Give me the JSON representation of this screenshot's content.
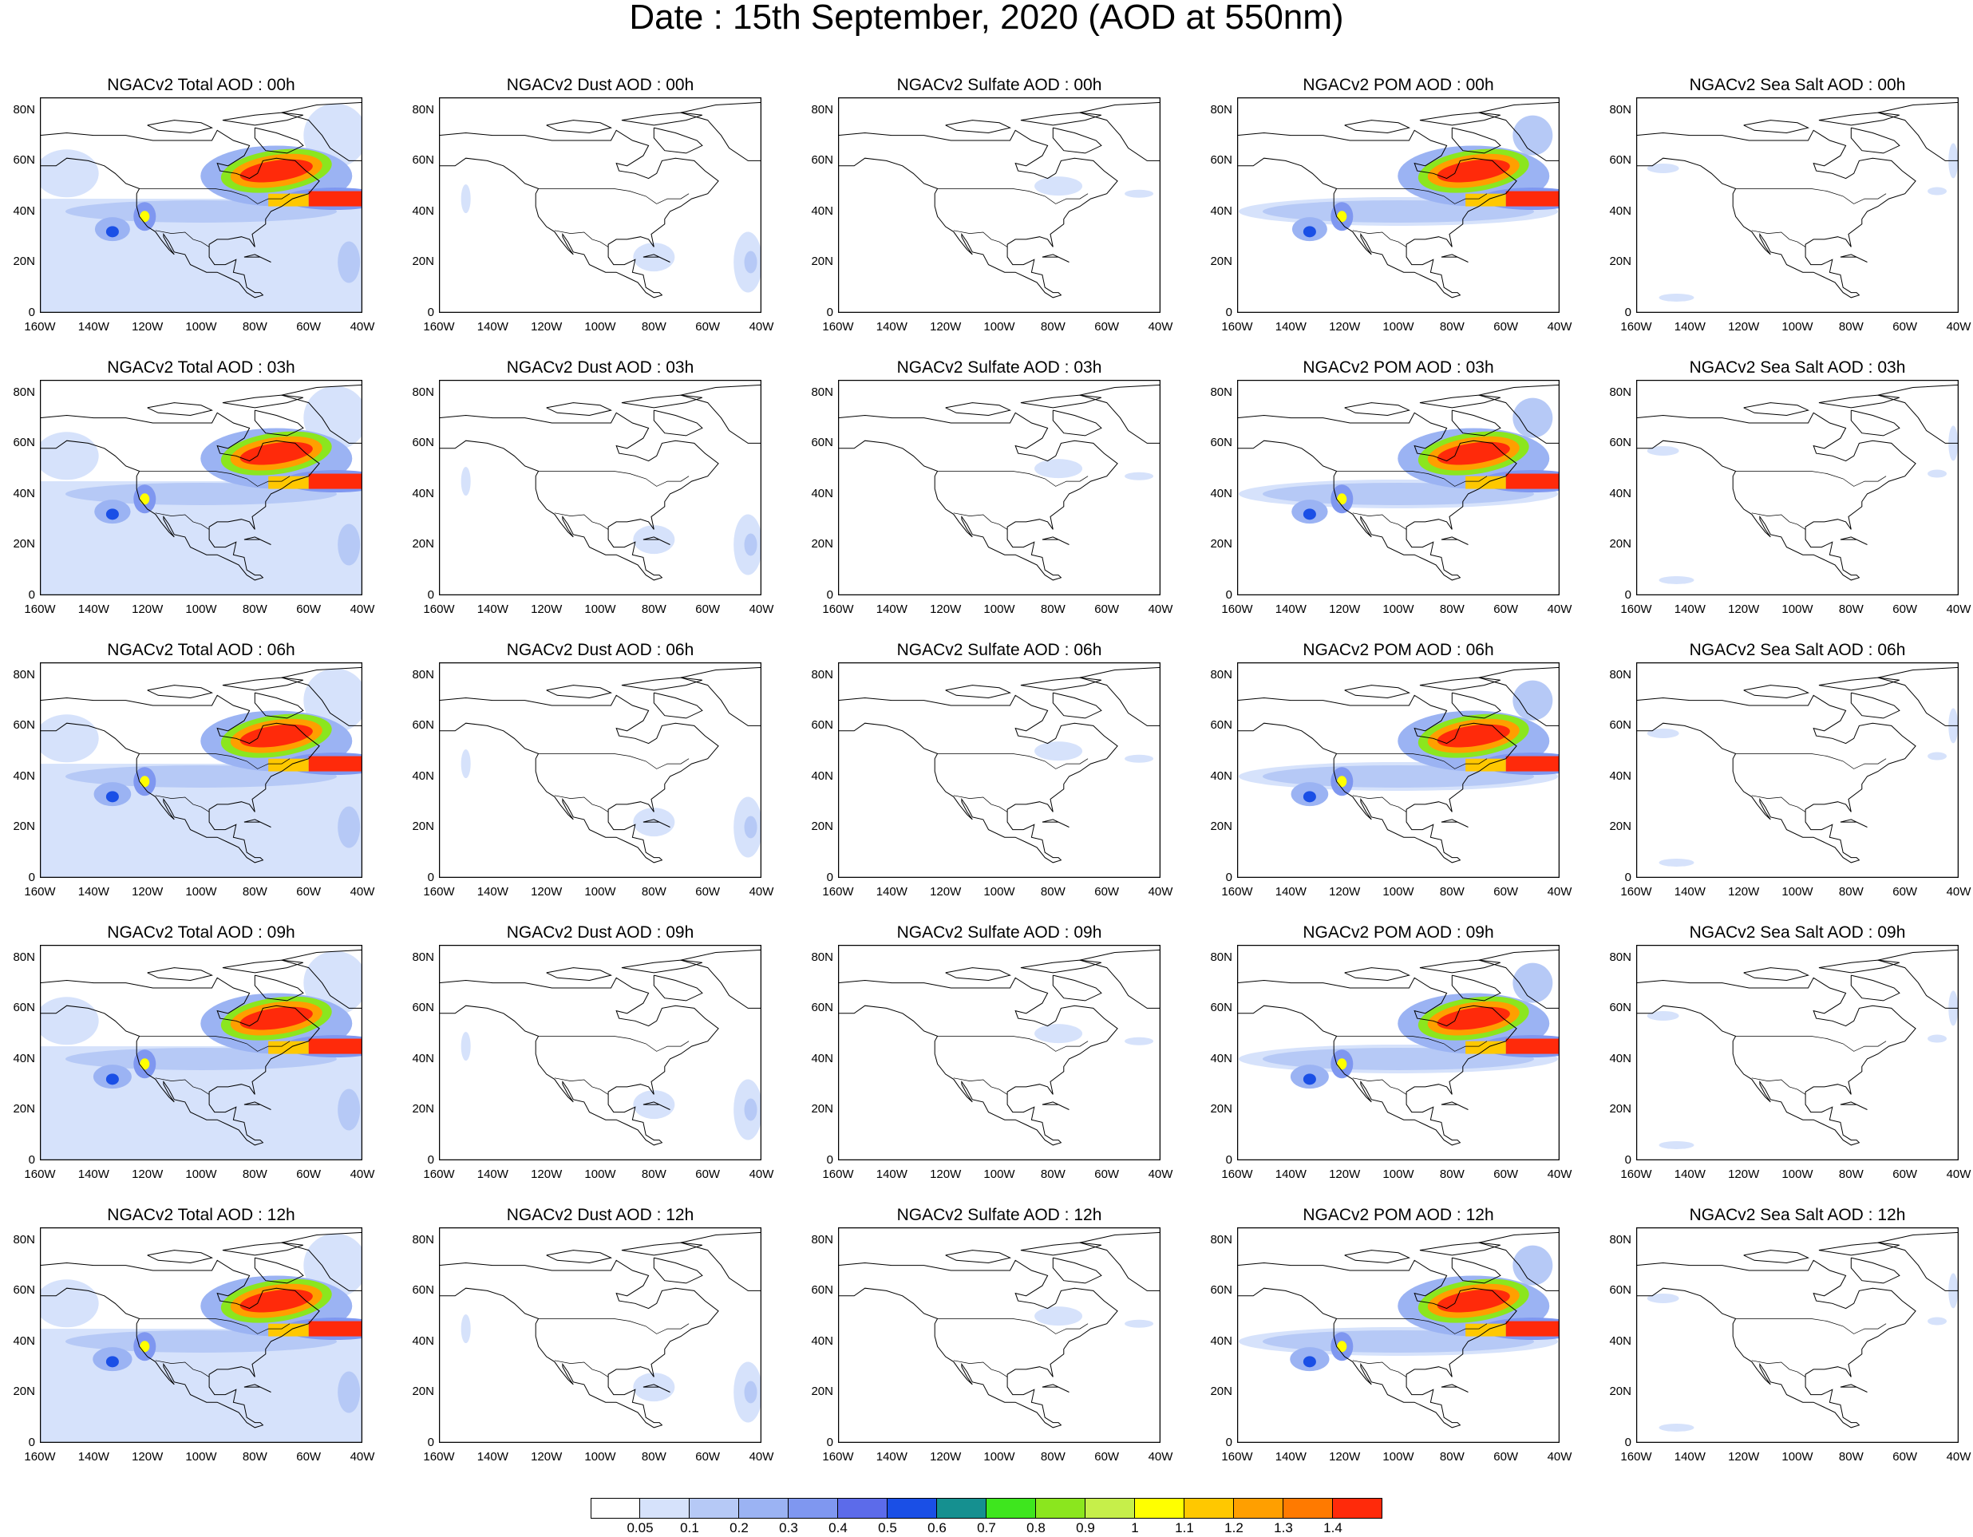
{
  "title": "Date : 15th September, 2020 (AOD at 550nm)",
  "rows": [
    [
      "NGACv2 Total AOD : 00h",
      "NGACv2 Dust AOD : 00h",
      "NGACv2 Sulfate AOD : 00h",
      "NGACv2 POM AOD : 00h",
      "NGACv2 Sea Salt AOD : 00h"
    ],
    [
      "NGACv2 Total AOD : 03h",
      "NGACv2 Dust AOD : 03h",
      "NGACv2 Sulfate AOD : 03h",
      "NGACv2 POM AOD : 03h",
      "NGACv2 Sea Salt AOD : 03h"
    ],
    [
      "NGACv2 Total AOD : 06h",
      "NGACv2 Dust AOD : 06h",
      "NGACv2 Sulfate AOD : 06h",
      "NGACv2 POM AOD : 06h",
      "NGACv2 Sea Salt AOD : 06h"
    ],
    [
      "NGACv2 Total AOD : 09h",
      "NGACv2 Dust AOD : 09h",
      "NGACv2 Sulfate AOD : 09h",
      "NGACv2 POM AOD : 09h",
      "NGACv2 Sea Salt  AOD : 09h"
    ],
    [
      "NGACv2 Total AOD  : 12h",
      "NGACv2 Dust AOD : 12h",
      "NGACv2 Sulfate AOD : 12h",
      "NGACv2 POM  AOD : 12h",
      "NGACv2 Sea Salt  AOD : 12h"
    ]
  ],
  "map": {
    "lon_labels": [
      "160W",
      "140W",
      "120W",
      "100W",
      "80W",
      "60W",
      "40W"
    ],
    "lat_labels": [
      "0",
      "20N",
      "40N",
      "60N",
      "80N"
    ]
  },
  "colorbar": {
    "labels": [
      "0.05",
      "0.1",
      "0.2",
      "0.3",
      "0.4",
      "0.5",
      "0.6",
      "0.7",
      "0.8",
      "0.9",
      "1",
      "1.1",
      "1.2",
      "1.3",
      "1.4"
    ],
    "colors": [
      "#ffffff",
      "#d6e2fb",
      "#b6c9f6",
      "#9bb3f3",
      "#7f97f0",
      "#5c6bea",
      "#1a4fe6",
      "#159090",
      "#3ee61e",
      "#8be61e",
      "#c6ef4a",
      "#ffff00",
      "#ffc800",
      "#ff9f00",
      "#ff7a00",
      "#ff2a0a"
    ]
  }
}
